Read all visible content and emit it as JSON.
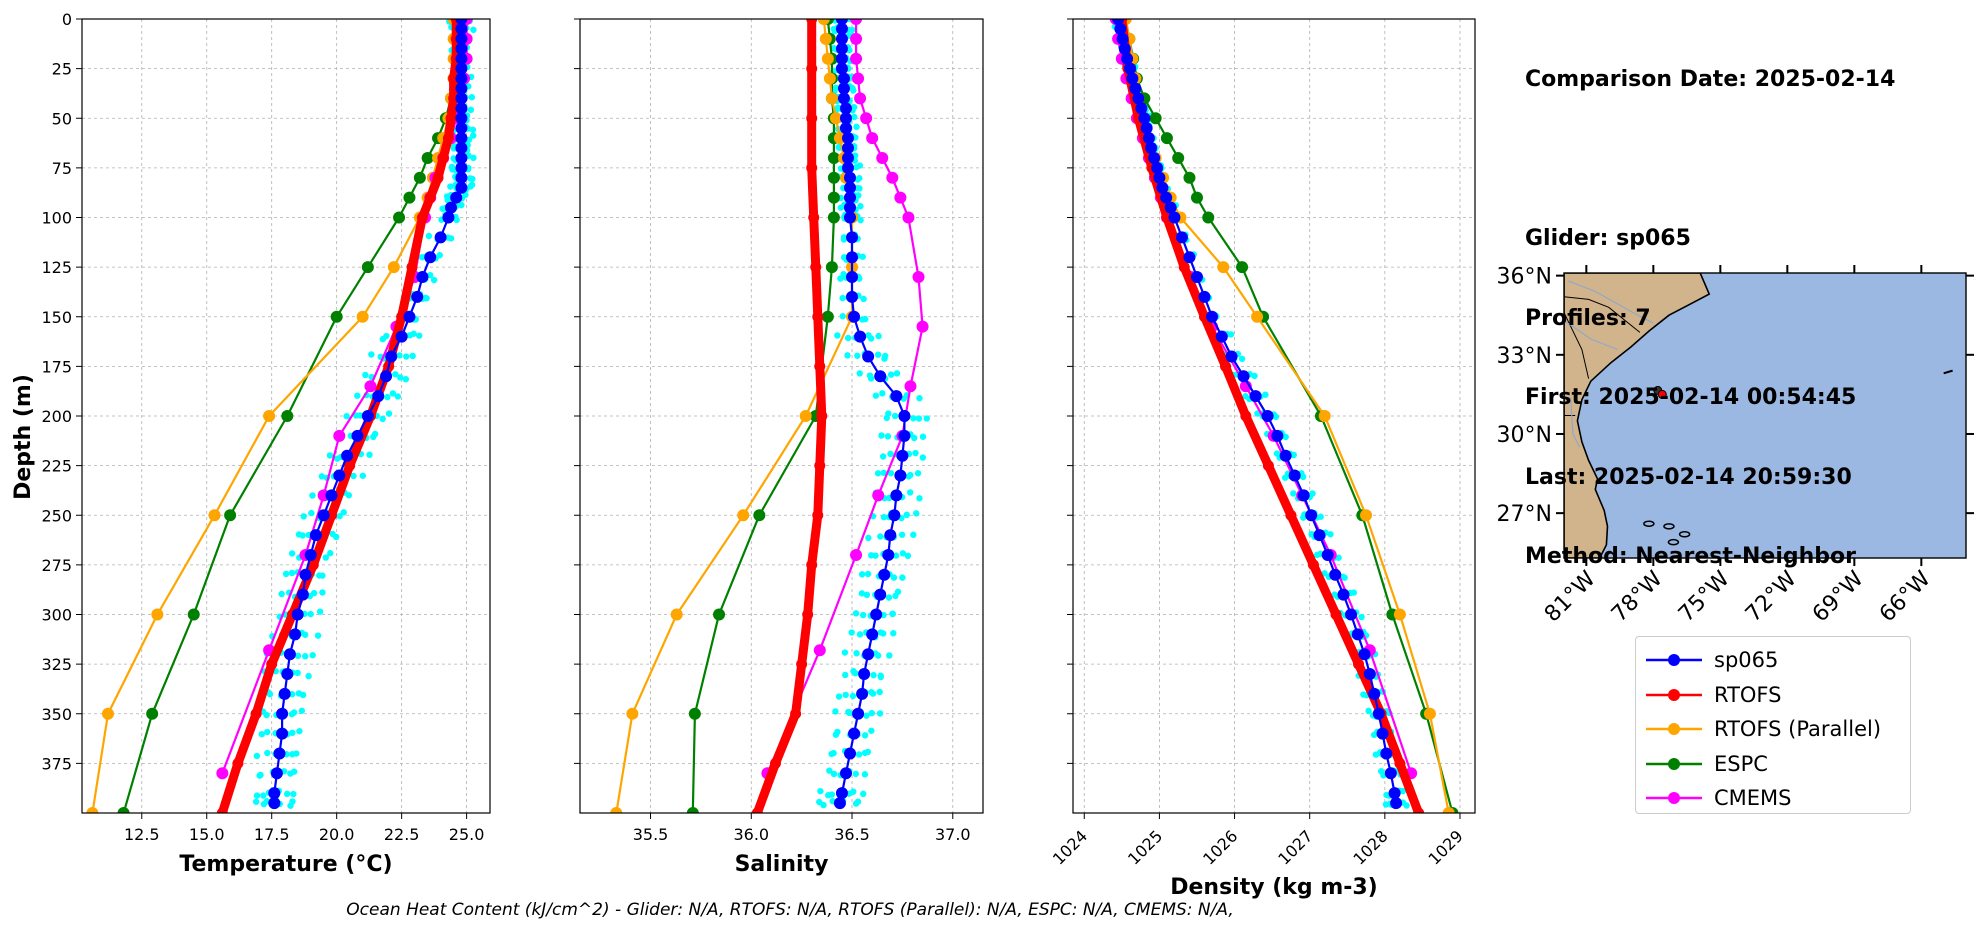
{
  "info": {
    "comparison_date": "Comparison Date: 2025-02-14",
    "glider": "Glider: sp065",
    "profiles": "Profiles: 7",
    "first": "First: 2025-02-14 00:54:45",
    "last": "Last: 2025-02-14 20:59:30",
    "method": "Method: Nearest-Neighbor"
  },
  "footer": "Ocean Heat Content (kJ/cm^2) - Glider: N/A,  RTOFS: N/A,  RTOFS (Parallel): N/A,  ESPC: N/A,  CMEMS: N/A,",
  "colors": {
    "sp065": "#0000ff",
    "RTOFS": "#ff0000",
    "RTOFS (Parallel)": "#ffa500",
    "ESPC": "#008000",
    "CMEMS": "#ff00ff",
    "glider_profiles": "#00ffff",
    "land": "#d2b48c",
    "ocean": "#9bb8e3"
  },
  "legend": [
    {
      "name": "sp065",
      "color": "#0000ff"
    },
    {
      "name": "RTOFS",
      "color": "#ff0000"
    },
    {
      "name": "RTOFS (Parallel)",
      "color": "#ffa500"
    },
    {
      "name": "ESPC",
      "color": "#008000"
    },
    {
      "name": "CMEMS",
      "color": "#ff00ff"
    }
  ],
  "chart_data": [
    {
      "type": "line",
      "xlabel": "Temperature (°C)",
      "ylabel": "Depth (m)",
      "xlim": [
        10.2,
        25.9
      ],
      "ylim": [
        400,
        0
      ],
      "xticks": [
        "12.5",
        "15.0",
        "17.5",
        "20.0",
        "22.5",
        "25.0"
      ],
      "yticks": [
        "0",
        "25",
        "50",
        "75",
        "100",
        "125",
        "150",
        "175",
        "200",
        "225",
        "250",
        "275",
        "300",
        "325",
        "350",
        "375"
      ],
      "grid": true,
      "series": [
        {
          "name": "sp065",
          "depth": [
            0,
            5,
            10,
            15,
            20,
            25,
            30,
            35,
            40,
            45,
            50,
            55,
            60,
            65,
            70,
            75,
            80,
            85,
            90,
            95,
            100,
            110,
            120,
            130,
            140,
            150,
            160,
            170,
            180,
            190,
            200,
            210,
            220,
            230,
            240,
            250,
            260,
            270,
            280,
            290,
            300,
            310,
            320,
            330,
            340,
            350,
            360,
            370,
            380,
            390,
            395
          ],
          "values": [
            24.8,
            24.8,
            24.8,
            24.8,
            24.8,
            24.8,
            24.8,
            24.8,
            24.8,
            24.8,
            24.8,
            24.8,
            24.8,
            24.8,
            24.8,
            24.8,
            24.8,
            24.8,
            24.6,
            24.4,
            24.3,
            24.0,
            23.6,
            23.3,
            23.1,
            22.8,
            22.5,
            22.1,
            21.9,
            21.6,
            21.2,
            20.8,
            20.4,
            20.1,
            19.8,
            19.5,
            19.2,
            19.0,
            18.8,
            18.7,
            18.5,
            18.4,
            18.2,
            18.1,
            18.0,
            17.9,
            17.9,
            17.8,
            17.7,
            17.6,
            17.6
          ]
        },
        {
          "name": "RTOFS",
          "depth": [
            0,
            10,
            20,
            30,
            40,
            50,
            60,
            70,
            80,
            90,
            100,
            125,
            150,
            175,
            200,
            225,
            250,
            275,
            300,
            325,
            350,
            375,
            400
          ],
          "values": [
            24.6,
            24.6,
            24.6,
            24.5,
            24.5,
            24.4,
            24.3,
            24.1,
            23.9,
            23.6,
            23.3,
            22.9,
            22.5,
            22.0,
            21.3,
            20.5,
            19.8,
            19.1,
            18.3,
            17.5,
            16.9,
            16.2,
            15.6
          ]
        },
        {
          "name": "RTOFS (Parallel)",
          "depth": [
            0,
            10,
            20,
            30,
            40,
            50,
            60,
            70,
            80,
            90,
            100,
            125,
            150,
            200,
            250,
            300,
            350,
            400
          ],
          "values": [
            24.5,
            24.5,
            24.5,
            24.5,
            24.4,
            24.3,
            24.1,
            23.9,
            23.7,
            23.5,
            23.2,
            22.2,
            21.0,
            17.4,
            15.3,
            13.1,
            11.2,
            10.6
          ]
        },
        {
          "name": "ESPC",
          "depth": [
            0,
            10,
            20,
            30,
            40,
            50,
            60,
            70,
            80,
            90,
            100,
            125,
            150,
            200,
            250,
            300,
            350,
            400
          ],
          "values": [
            24.6,
            24.6,
            24.6,
            24.5,
            24.4,
            24.2,
            23.9,
            23.5,
            23.2,
            22.8,
            22.4,
            21.2,
            20.0,
            18.1,
            15.9,
            14.5,
            12.9,
            11.8
          ]
        },
        {
          "name": "CMEMS",
          "depth": [
            0,
            10,
            20,
            30,
            40,
            50,
            60,
            70,
            80,
            90,
            100,
            130,
            155,
            185,
            210,
            240,
            270,
            318,
            380
          ],
          "values": [
            25.0,
            25.0,
            25.0,
            24.9,
            24.8,
            24.6,
            24.4,
            24.1,
            23.8,
            23.6,
            23.4,
            23.0,
            22.3,
            21.3,
            20.1,
            19.5,
            18.8,
            17.4,
            15.6
          ]
        }
      ]
    },
    {
      "type": "line",
      "xlabel": "Salinity",
      "xlim": [
        35.15,
        37.15
      ],
      "ylim": [
        400,
        0
      ],
      "xticks": [
        "35.5",
        "36.0",
        "36.5",
        "37.0"
      ],
      "grid": true,
      "series": [
        {
          "name": "sp065",
          "depth": [
            0,
            5,
            10,
            15,
            20,
            25,
            30,
            35,
            40,
            45,
            50,
            55,
            60,
            65,
            70,
            75,
            80,
            85,
            90,
            95,
            100,
            110,
            120,
            130,
            140,
            150,
            160,
            170,
            180,
            190,
            200,
            210,
            220,
            230,
            240,
            250,
            260,
            270,
            280,
            290,
            300,
            310,
            320,
            330,
            340,
            350,
            360,
            370,
            380,
            390,
            395
          ],
          "values": [
            36.45,
            36.45,
            36.45,
            36.45,
            36.45,
            36.45,
            36.46,
            36.46,
            36.46,
            36.47,
            36.47,
            36.47,
            36.48,
            36.48,
            36.48,
            36.48,
            36.49,
            36.49,
            36.49,
            36.49,
            36.49,
            36.5,
            36.5,
            36.5,
            36.5,
            36.51,
            36.54,
            36.58,
            36.64,
            36.72,
            36.76,
            36.76,
            36.75,
            36.74,
            36.72,
            36.71,
            36.69,
            36.68,
            36.66,
            36.64,
            36.62,
            36.6,
            36.58,
            36.56,
            36.55,
            36.53,
            36.51,
            36.49,
            36.47,
            36.45,
            36.44
          ]
        },
        {
          "name": "RTOFS",
          "depth": [
            0,
            25,
            50,
            75,
            100,
            125,
            150,
            175,
            200,
            225,
            250,
            275,
            300,
            325,
            350,
            375,
            400
          ],
          "values": [
            36.3,
            36.3,
            36.3,
            36.3,
            36.31,
            36.32,
            36.33,
            36.34,
            36.35,
            36.34,
            36.33,
            36.3,
            36.28,
            36.25,
            36.22,
            36.12,
            36.03
          ]
        },
        {
          "name": "RTOFS (Parallel)",
          "depth": [
            0,
            10,
            20,
            30,
            40,
            50,
            60,
            70,
            80,
            90,
            100,
            125,
            150,
            200,
            250,
            300,
            350,
            400
          ],
          "values": [
            36.36,
            36.37,
            36.38,
            36.39,
            36.4,
            36.42,
            36.44,
            36.46,
            36.47,
            36.49,
            36.5,
            36.5,
            36.5,
            36.27,
            35.96,
            35.63,
            35.41,
            35.33
          ]
        },
        {
          "name": "ESPC",
          "depth": [
            0,
            10,
            20,
            30,
            40,
            50,
            60,
            70,
            80,
            90,
            100,
            125,
            150,
            200,
            250,
            300,
            350,
            400
          ],
          "values": [
            36.38,
            36.39,
            36.4,
            36.4,
            36.4,
            36.41,
            36.41,
            36.41,
            36.41,
            36.41,
            36.41,
            36.4,
            36.38,
            36.32,
            36.04,
            35.84,
            35.72,
            35.71
          ]
        },
        {
          "name": "CMEMS",
          "depth": [
            0,
            10,
            20,
            30,
            40,
            50,
            60,
            70,
            80,
            90,
            100,
            130,
            155,
            185,
            210,
            240,
            270,
            318,
            380
          ],
          "values": [
            36.52,
            36.52,
            36.52,
            36.53,
            36.54,
            36.57,
            36.6,
            36.65,
            36.7,
            36.74,
            36.78,
            36.83,
            36.85,
            36.79,
            36.75,
            36.63,
            36.52,
            36.34,
            36.08
          ]
        }
      ]
    },
    {
      "type": "line",
      "xlabel": "Density (kg m-3)",
      "xlim": [
        1023.85,
        1029.2
      ],
      "ylim": [
        400,
        0
      ],
      "xticks": [
        "1024",
        "1025",
        "1026",
        "1027",
        "1028",
        "1029"
      ],
      "grid": true,
      "series": [
        {
          "name": "sp065",
          "depth": [
            0,
            5,
            10,
            15,
            20,
            25,
            30,
            35,
            40,
            45,
            50,
            55,
            60,
            65,
            70,
            75,
            80,
            85,
            90,
            95,
            100,
            110,
            120,
            130,
            140,
            150,
            160,
            170,
            180,
            190,
            200,
            210,
            220,
            230,
            240,
            250,
            260,
            270,
            280,
            290,
            300,
            310,
            320,
            330,
            340,
            350,
            360,
            370,
            380,
            390,
            395
          ],
          "values": [
            1024.45,
            1024.48,
            1024.51,
            1024.54,
            1024.57,
            1024.61,
            1024.64,
            1024.68,
            1024.72,
            1024.76,
            1024.8,
            1024.83,
            1024.86,
            1024.89,
            1024.93,
            1024.97,
            1025.0,
            1025.04,
            1025.09,
            1025.15,
            1025.2,
            1025.3,
            1025.4,
            1025.5,
            1025.6,
            1025.7,
            1025.83,
            1025.96,
            1026.12,
            1026.28,
            1026.44,
            1026.57,
            1026.68,
            1026.8,
            1026.92,
            1027.02,
            1027.13,
            1027.24,
            1027.34,
            1027.45,
            1027.55,
            1027.64,
            1027.73,
            1027.8,
            1027.86,
            1027.92,
            1027.97,
            1028.02,
            1028.08,
            1028.13,
            1028.15
          ]
        },
        {
          "name": "RTOFS",
          "depth": [
            0,
            25,
            50,
            75,
            100,
            125,
            150,
            175,
            200,
            225,
            250,
            275,
            300,
            325,
            350,
            375,
            400
          ],
          "values": [
            1024.5,
            1024.58,
            1024.72,
            1024.9,
            1025.1,
            1025.33,
            1025.6,
            1025.88,
            1026.15,
            1026.45,
            1026.75,
            1027.05,
            1027.35,
            1027.65,
            1027.95,
            1028.2,
            1028.45
          ]
        },
        {
          "name": "RTOFS (Parallel)",
          "depth": [
            0,
            10,
            20,
            30,
            40,
            50,
            60,
            70,
            80,
            90,
            100,
            125,
            150,
            200,
            250,
            300,
            350,
            400
          ],
          "values": [
            1024.55,
            1024.6,
            1024.64,
            1024.68,
            1024.72,
            1024.78,
            1024.86,
            1024.95,
            1025.05,
            1025.15,
            1025.28,
            1025.85,
            1026.3,
            1027.2,
            1027.75,
            1028.2,
            1028.6,
            1028.85
          ]
        },
        {
          "name": "ESPC",
          "depth": [
            0,
            10,
            20,
            30,
            40,
            50,
            60,
            70,
            80,
            90,
            100,
            125,
            150,
            200,
            250,
            300,
            350,
            400
          ],
          "values": [
            1024.55,
            1024.6,
            1024.65,
            1024.7,
            1024.8,
            1024.95,
            1025.1,
            1025.25,
            1025.4,
            1025.5,
            1025.65,
            1026.1,
            1026.38,
            1027.15,
            1027.7,
            1028.1,
            1028.55,
            1028.9
          ]
        },
        {
          "name": "CMEMS",
          "depth": [
            0,
            10,
            20,
            30,
            40,
            50,
            60,
            70,
            80,
            90,
            100,
            130,
            155,
            185,
            210,
            240,
            270,
            318,
            380
          ],
          "values": [
            1024.42,
            1024.45,
            1024.5,
            1024.56,
            1024.63,
            1024.7,
            1024.78,
            1024.86,
            1024.94,
            1025.02,
            1025.1,
            1025.42,
            1025.7,
            1026.15,
            1026.52,
            1026.9,
            1027.28,
            1027.8,
            1028.35
          ]
        }
      ]
    }
  ],
  "map": {
    "lat_ticks": [
      "36°N",
      "33°N",
      "30°N",
      "27°N"
    ],
    "lon_ticks": [
      "81°W",
      "78°W",
      "75°W",
      "72°W",
      "69°W",
      "66°W"
    ],
    "lon_range": [
      -82.0,
      -64.0
    ],
    "lat_range": [
      25.3,
      36.1
    ],
    "glider_position": {
      "lon": -77.6,
      "lat": 31.6
    }
  }
}
